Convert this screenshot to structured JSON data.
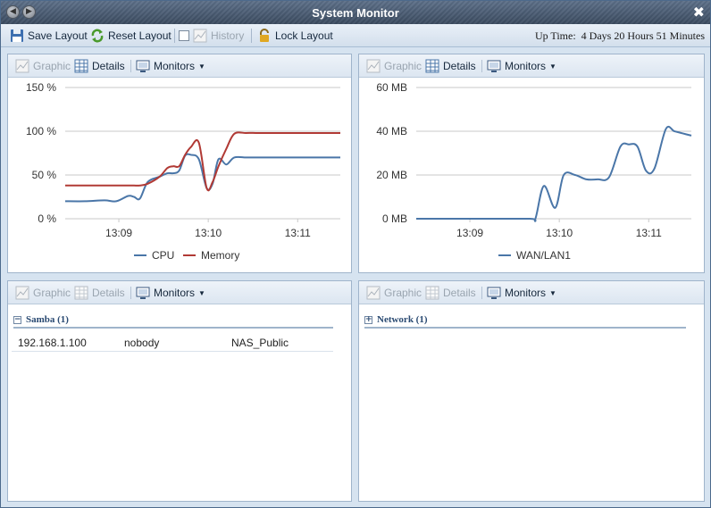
{
  "window": {
    "title": "System Monitor"
  },
  "toolbar": {
    "save_layout": "Save Layout",
    "reset_layout": "Reset Layout",
    "history": "History",
    "lock_layout": "Lock Layout",
    "uptime_label": "Up Time:",
    "uptime_value": "4 Days 20 Hours 51 Minutes"
  },
  "panels": {
    "cpu_memory": {
      "graphic_label": "Graphic",
      "details_label": "Details",
      "monitors_label": "Monitors"
    },
    "network_graph": {
      "graphic_label": "Graphic",
      "details_label": "Details",
      "monitors_label": "Monitors"
    },
    "samba": {
      "graphic_label": "Graphic",
      "details_label": "Details",
      "monitors_label": "Monitors",
      "group_title": "Samba (1)",
      "rows": [
        {
          "ip": "192.168.1.100",
          "user": "nobody",
          "share": "NAS_Public"
        }
      ]
    },
    "network": {
      "graphic_label": "Graphic",
      "details_label": "Details",
      "monitors_label": "Monitors",
      "group_title": "Network (1)"
    }
  },
  "chart_data": [
    {
      "type": "line",
      "x_ticks": [
        "13:09",
        "13:10",
        "13:11"
      ],
      "y_ticks": [
        "0 %",
        "50 %",
        "100 %",
        "150 %"
      ],
      "ylim": [
        0,
        150
      ],
      "x": [
        0,
        0.5,
        1,
        1.3,
        1.6,
        1.75,
        1.9,
        2.1,
        2.4,
        2.6,
        2.75,
        2.9,
        3.05,
        3.2,
        3.4,
        3.6,
        3.75,
        3.9,
        4.1,
        4.3,
        4.6,
        4.85,
        5.05,
        5.3,
        5.5,
        5.7,
        5.95,
        6.2,
        6.5,
        6.8,
        7.0
      ],
      "series": [
        {
          "name": "CPU",
          "color": "#4a76a8",
          "values": [
            20,
            20,
            21,
            20,
            26,
            25,
            23,
            42,
            48,
            52,
            52,
            55,
            72,
            73,
            68,
            35,
            40,
            68,
            62,
            70,
            70,
            70,
            70,
            70,
            70,
            70,
            70,
            70,
            70,
            70,
            70
          ]
        },
        {
          "name": "Memory",
          "color": "#b13a35",
          "values": [
            38,
            38,
            38,
            38,
            38,
            38,
            38,
            40,
            48,
            58,
            60,
            60,
            73,
            82,
            87,
            35,
            42,
            60,
            80,
            97,
            98,
            98,
            98,
            98,
            98,
            98,
            98,
            98,
            98,
            98,
            98
          ]
        }
      ]
    },
    {
      "type": "line",
      "x_ticks": [
        "13:09",
        "13:10",
        "13:11"
      ],
      "y_ticks": [
        "0 MB",
        "20 MB",
        "40 MB",
        "60 MB"
      ],
      "ylim": [
        0,
        60
      ],
      "x": [
        0,
        1,
        2,
        2.1,
        2.25,
        2.45,
        2.6,
        2.8,
        3.0,
        3.2,
        3.4,
        3.6,
        3.75,
        3.9,
        4.05,
        4.2,
        4.4,
        4.55,
        4.7,
        4.85
      ],
      "series": [
        {
          "name": "WAN/LAN1",
          "color": "#4a76a8",
          "values": [
            0,
            0,
            0,
            0,
            15,
            5,
            20,
            20,
            18,
            18,
            19,
            33,
            34,
            33,
            22,
            23,
            41,
            40,
            39,
            38
          ]
        }
      ]
    }
  ],
  "icons": {
    "save": "disk-icon",
    "reset": "refresh-icon",
    "history": "history-chart-icon",
    "lock": "lock-icon",
    "graphic": "graph-icon",
    "details": "grid-icon",
    "monitors": "monitor-icon"
  }
}
